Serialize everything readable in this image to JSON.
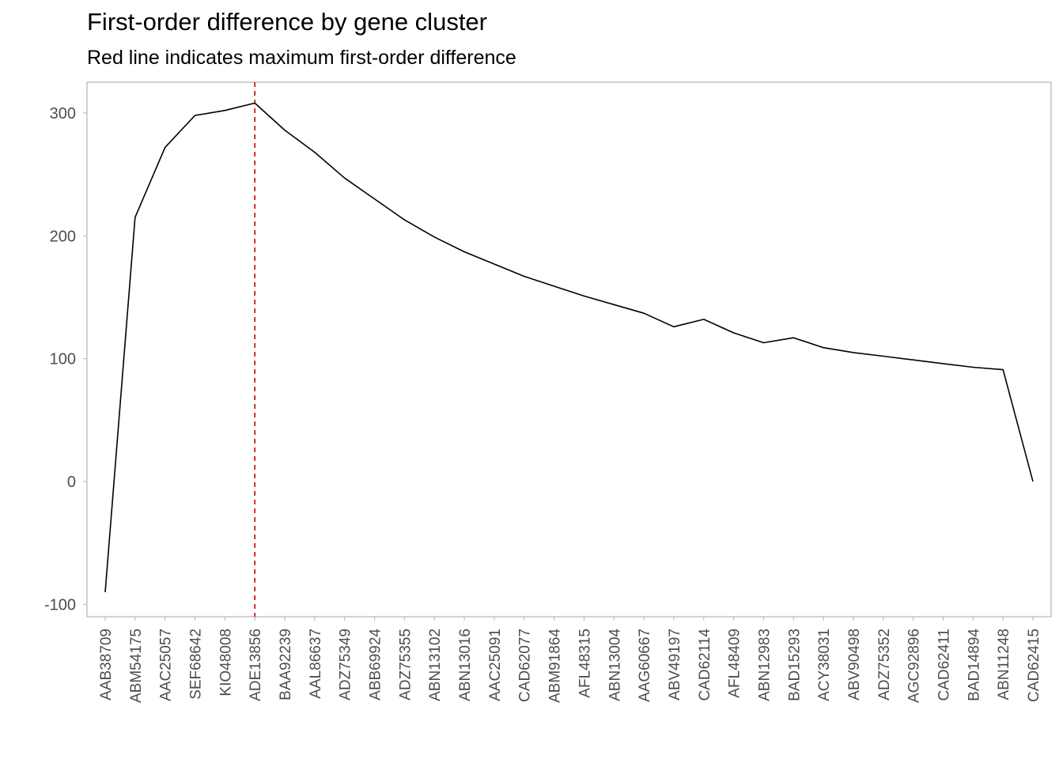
{
  "chart_data": {
    "type": "line",
    "title": "First-order difference by gene cluster",
    "subtitle": "Red line indicates maximum first-order difference",
    "xlabel": "",
    "ylabel": "",
    "ylim": [
      -110,
      325
    ],
    "yticks": [
      -100,
      0,
      100,
      200,
      300
    ],
    "grid": false,
    "categories": [
      "AAB38709",
      "ABM54175",
      "AAC25057",
      "SEF68642",
      "KIO48008",
      "ADE13856",
      "BAA92239",
      "AAL86637",
      "ADZ75349",
      "ABB69924",
      "ADZ75355",
      "ABN13102",
      "ABN13016",
      "AAC25091",
      "CAD62077",
      "ABM91864",
      "AFL48315",
      "ABN13004",
      "AAG60667",
      "ABV49197",
      "CAD62114",
      "AFL48409",
      "ABN12983",
      "BAD15293",
      "ACY38031",
      "ABV90498",
      "ADZ75352",
      "AGC92896",
      "CAD62411",
      "BAD14894",
      "ABN11248",
      "CAD62415"
    ],
    "series": [
      {
        "name": "First-order difference",
        "color": "#000000",
        "values": [
          -90,
          215,
          272,
          298,
          302,
          308,
          286,
          268,
          247,
          230,
          213,
          199,
          187,
          177,
          167,
          159,
          151,
          144,
          137,
          126,
          132,
          121,
          113,
          117,
          109,
          105,
          102,
          99,
          96,
          93,
          91,
          0
        ]
      }
    ],
    "annotations": [
      {
        "type": "vline",
        "category": "ADE13856",
        "color": "#cc0000",
        "style": "dashed"
      }
    ]
  }
}
